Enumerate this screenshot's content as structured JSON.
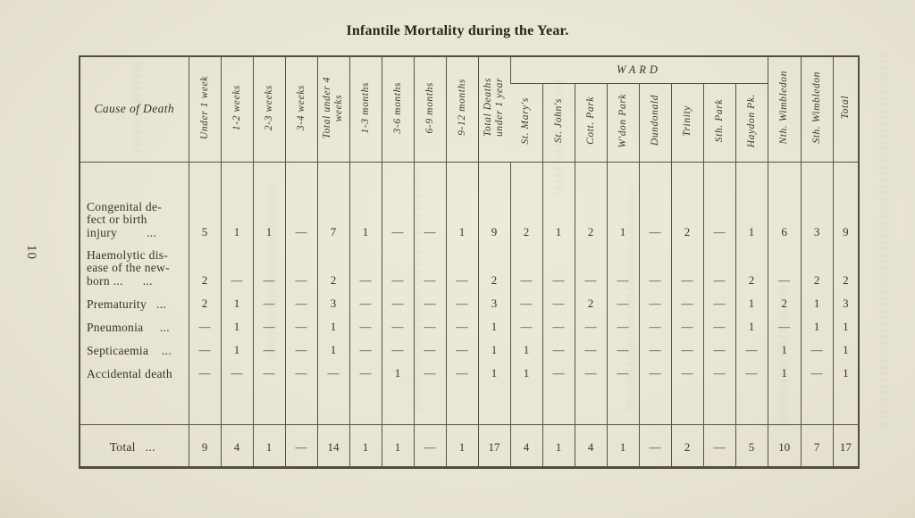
{
  "page": {
    "number": "10",
    "title": "Infantile Mortality during the Year."
  },
  "table": {
    "cause_header": "Cause of Death",
    "age_headers": [
      {
        "lines": [
          "Under 1 week"
        ]
      },
      {
        "lines": [
          "1-2 weeks"
        ]
      },
      {
        "lines": [
          "2-3 weeks"
        ]
      },
      {
        "lines": [
          "3-4 weeks"
        ]
      },
      {
        "lines": [
          "Total under 4",
          "weeks"
        ]
      },
      {
        "lines": [
          "1-3 months"
        ]
      },
      {
        "lines": [
          "3-6 months"
        ]
      },
      {
        "lines": [
          "6-9 months"
        ]
      },
      {
        "lines": [
          "9-12 months"
        ]
      },
      {
        "lines": [
          "Total Deaths",
          "under 1 year"
        ]
      }
    ],
    "ward_group_label": "WARD",
    "ward_headers": [
      "St. Mary's",
      "St. John's",
      "Cott. Park",
      "W'don Park",
      "Dundonald",
      "Trinity",
      "Sth. Park",
      "Haydon Pk."
    ],
    "region_headers": [
      "Nth. Wimbledon",
      "Sth. Wimbledon"
    ],
    "total_header": "Total",
    "rows": [
      {
        "label_lines": [
          "Congenital de-",
          "fect or birth",
          "injury         ..."
        ],
        "values": [
          "5",
          "1",
          "1",
          "—",
          "7",
          "1",
          "—",
          "—",
          "1",
          "9",
          "2",
          "1",
          "2",
          "1",
          "—",
          "2",
          "—",
          "1",
          "6",
          "3",
          "9"
        ]
      },
      {
        "label_lines": [
          "Haemolytic dis-",
          "ease of the new-",
          "born ...      ..."
        ],
        "values": [
          "2",
          "—",
          "—",
          "—",
          "2",
          "—",
          "—",
          "—",
          "—",
          "2",
          "—",
          "—",
          "—",
          "—",
          "—",
          "—",
          "—",
          "2",
          "—",
          "2",
          "2"
        ]
      },
      {
        "label_lines": [
          "Prematurity   ..."
        ],
        "values": [
          "2",
          "1",
          "—",
          "—",
          "3",
          "—",
          "—",
          "—",
          "—",
          "3",
          "—",
          "—",
          "2",
          "—",
          "—",
          "—",
          "—",
          "1",
          "2",
          "1",
          "3"
        ]
      },
      {
        "label_lines": [
          "Pneumonia     ..."
        ],
        "values": [
          "—",
          "1",
          "—",
          "—",
          "1",
          "—",
          "—",
          "—",
          "—",
          "1",
          "—",
          "—",
          "—",
          "—",
          "—",
          "—",
          "—",
          "1",
          "—",
          "1",
          "1"
        ]
      },
      {
        "label_lines": [
          "Septicaemia    ..."
        ],
        "values": [
          "—",
          "1",
          "—",
          "—",
          "1",
          "—",
          "—",
          "—",
          "—",
          "1",
          "1",
          "—",
          "—",
          "—",
          "—",
          "—",
          "—",
          "—",
          "1",
          "—",
          "1"
        ]
      },
      {
        "label_lines": [
          "Accidental death"
        ],
        "values": [
          "—",
          "—",
          "—",
          "—",
          "—",
          "—",
          "1",
          "—",
          "—",
          "1",
          "1",
          "—",
          "—",
          "—",
          "—",
          "—",
          "—",
          "—",
          "1",
          "—",
          "1"
        ]
      }
    ],
    "total_row": {
      "label": "Total   ...",
      "values": [
        "9",
        "4",
        "1",
        "—",
        "14",
        "1",
        "1",
        "—",
        "1",
        "17",
        "4",
        "1",
        "4",
        "1",
        "—",
        "2",
        "—",
        "5",
        "10",
        "7",
        "17"
      ]
    }
  },
  "colors": {
    "paper": "#e9e5d3",
    "ink": "#36342a",
    "rule": "#565344"
  }
}
